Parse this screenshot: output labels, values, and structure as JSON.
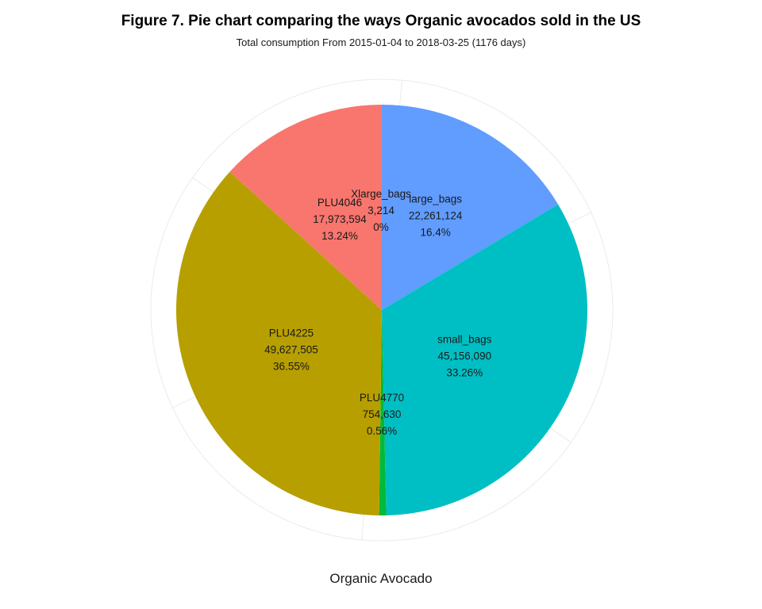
{
  "chart_data": {
    "type": "pie",
    "title": "Figure 7. Pie chart comparing the ways Organic avocados sold in the US",
    "subtitle": "Total consumption From 2015-01-04 to 2018-03-25 (1176 days)",
    "xlabel": "Organic Avocado",
    "slices": [
      {
        "name": "large_bags",
        "value": 22261124,
        "value_label": "22,261,124",
        "percent_label": "16.4%",
        "color": "#619CFF"
      },
      {
        "name": "small_bags",
        "value": 45156090,
        "value_label": "45,156,090",
        "percent_label": "33.26%",
        "color": "#00BFC4"
      },
      {
        "name": "PLU4770",
        "value": 754630,
        "value_label": "754,630",
        "percent_label": "0.56%",
        "color": "#00BA38"
      },
      {
        "name": "PLU4225",
        "value": 49627505,
        "value_label": "49,627,505",
        "percent_label": "36.55%",
        "color": "#B79F00"
      },
      {
        "name": "PLU4046",
        "value": 17973594,
        "value_label": "17,973,594",
        "percent_label": "13.24%",
        "color": "#F8766D"
      },
      {
        "name": "Xlarge_bags",
        "value": 3214,
        "value_label": "3,214",
        "percent_label": "0%",
        "color": "#F564E3"
      }
    ],
    "grid": true,
    "legend": "none"
  }
}
